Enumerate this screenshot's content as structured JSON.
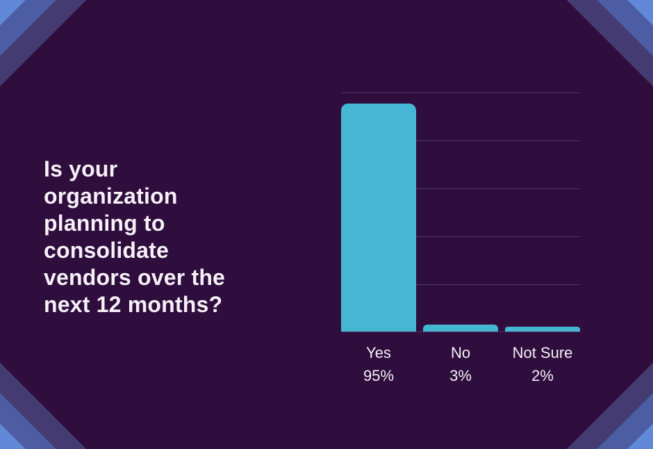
{
  "question": {
    "text": "Is your organization planning to consolidate vendors over the next 12 months?",
    "lines": [
      "Is your",
      "organization",
      "planning to",
      "consolidate",
      "vendors over the",
      "next 12 months?"
    ]
  },
  "chart_data": {
    "type": "bar",
    "title": "Is your organization planning to consolidate vendors over the next 12 months?",
    "categories": [
      "Yes",
      "No",
      "Not Sure"
    ],
    "values": [
      95,
      3,
      2
    ],
    "value_labels": [
      "95%",
      "3%",
      "2%"
    ],
    "xlabel": "",
    "ylabel": "",
    "ylim": [
      0,
      100
    ],
    "grid_interval_percent": 20,
    "grid": "horizontal-lines-only",
    "tick_labels_shown": "category names with percentage data labels below bars",
    "legend_position": "none",
    "bar_color": "#45b7d5"
  },
  "colors": {
    "background": "#2f0d3d",
    "bar": "#45b7d5",
    "grid": "#4f3a64",
    "axis": "#4a3560",
    "text": "#f6f0f8",
    "stripe_light": "#6289d7",
    "stripe_mid": "#4c5da3",
    "stripe_dark": "#433b72"
  }
}
